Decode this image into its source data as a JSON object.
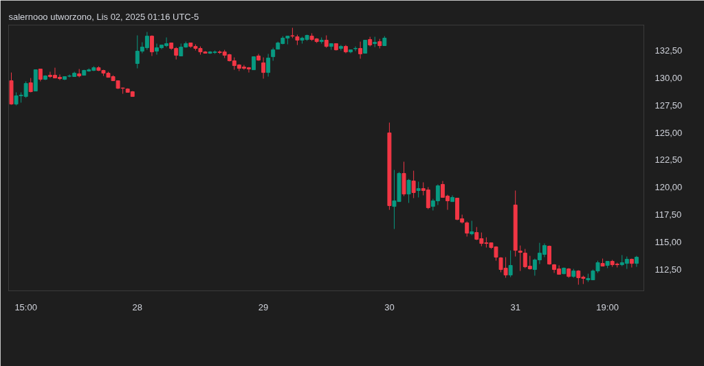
{
  "chart_data": {
    "type": "candlestick",
    "title": "salernooo utworzono, Lis 02, 2025 01:16 UTC-5",
    "categories": [
      null,
      null,
      null,
      "15:00",
      null,
      null,
      null,
      null,
      null,
      null,
      null,
      null,
      null,
      null,
      null,
      null,
      null,
      null,
      null,
      null,
      null,
      null,
      null,
      null,
      null,
      null,
      "28",
      null,
      null,
      null,
      null,
      null,
      null,
      null,
      null,
      null,
      null,
      null,
      null,
      null,
      null,
      null,
      null,
      null,
      null,
      null,
      null,
      null,
      null,
      null,
      null,
      null,
      "29",
      null,
      null,
      null,
      null,
      null,
      null,
      null,
      null,
      null,
      null,
      null,
      null,
      null,
      null,
      null,
      null,
      null,
      null,
      null,
      null,
      null,
      null,
      null,
      null,
      null,
      "30",
      null,
      null,
      null,
      null,
      null,
      null,
      null,
      null,
      null,
      null,
      null,
      null,
      null,
      null,
      null,
      null,
      null,
      null,
      null,
      null,
      null,
      null,
      null,
      null,
      null,
      "31",
      null,
      null,
      null,
      null,
      null,
      null,
      null,
      null,
      null,
      null,
      null,
      null,
      null,
      null,
      null,
      null,
      null,
      null,
      "19:00",
      null,
      null,
      null,
      null,
      null,
      null
    ],
    "ohlc": [
      [
        129.73,
        130.48,
        127.54,
        127.6
      ],
      [
        127.6,
        128.67,
        127.48,
        128.35
      ],
      [
        128.35,
        128.67,
        127.73,
        128.42
      ],
      [
        128.29,
        129.67,
        128.17,
        129.48
      ],
      [
        129.54,
        129.98,
        128.67,
        128.73
      ],
      [
        128.79,
        130.73,
        128.79,
        130.73
      ],
      [
        130.8,
        130.8,
        129.67,
        129.86
      ],
      [
        129.86,
        130.23,
        129.79,
        130.17
      ],
      [
        130.23,
        130.55,
        129.98,
        130.11
      ],
      [
        130.23,
        130.92,
        129.98,
        129.98
      ],
      [
        130.04,
        130.3,
        129.79,
        129.92
      ],
      [
        129.86,
        130.11,
        129.79,
        130.11
      ],
      [
        130.14,
        130.3,
        130.04,
        130.17
      ],
      [
        130.11,
        130.55,
        130.11,
        130.42
      ],
      [
        130.36,
        130.8,
        130.04,
        130.17
      ],
      [
        130.23,
        130.73,
        130.23,
        130.67
      ],
      [
        130.61,
        130.86,
        130.55,
        130.73
      ],
      [
        130.67,
        131.05,
        130.61,
        130.92
      ],
      [
        130.92,
        131.05,
        130.61,
        130.67
      ],
      [
        130.67,
        130.73,
        130.17,
        130.42
      ],
      [
        130.42,
        130.55,
        130.04,
        130.04
      ],
      [
        130.11,
        130.23,
        129.73,
        129.73
      ],
      [
        129.73,
        129.73,
        128.98,
        129.04
      ],
      [
        129.07,
        129.1,
        128.54,
        129.04
      ],
      [
        128.98,
        129.04,
        128.67,
        128.67
      ],
      [
        128.73,
        128.79,
        128.29,
        128.29
      ],
      [
        131.3,
        133.87,
        130.86,
        132.43
      ],
      [
        132.43,
        133.24,
        132.24,
        132.8
      ],
      [
        132.74,
        134.18,
        132.55,
        133.8
      ],
      [
        133.8,
        133.87,
        131.99,
        132.36
      ],
      [
        132.43,
        133.12,
        132.11,
        132.74
      ],
      [
        132.74,
        132.99,
        132.61,
        132.99
      ],
      [
        132.93,
        133.68,
        132.8,
        133.12
      ],
      [
        133.18,
        133.18,
        132.55,
        132.68
      ],
      [
        132.68,
        132.8,
        131.67,
        132.05
      ],
      [
        131.99,
        133.12,
        131.99,
        132.8
      ],
      [
        132.8,
        133.3,
        132.74,
        133.12
      ],
      [
        133.18,
        133.18,
        132.74,
        132.86
      ],
      [
        132.86,
        133.05,
        132.49,
        132.68
      ],
      [
        132.68,
        132.86,
        132.11,
        132.36
      ],
      [
        132.36,
        132.43,
        132.24,
        132.24
      ],
      [
        132.24,
        132.43,
        132.18,
        132.36
      ],
      [
        132.3,
        132.49,
        132.18,
        132.36
      ],
      [
        132.36,
        132.49,
        132.18,
        132.3
      ],
      [
        132.36,
        132.55,
        131.8,
        132.05
      ],
      [
        132.11,
        132.18,
        131.49,
        131.55
      ],
      [
        131.55,
        131.86,
        130.73,
        131.11
      ],
      [
        131.17,
        131.24,
        130.61,
        130.86
      ],
      [
        130.98,
        131.17,
        130.73,
        130.86
      ],
      [
        130.92,
        130.98,
        130.48,
        130.8
      ],
      [
        130.73,
        131.92,
        130.73,
        131.92
      ],
      [
        131.99,
        132.18,
        131.55,
        131.61
      ],
      [
        131.36,
        131.86,
        129.92,
        130.48
      ],
      [
        130.48,
        132.18,
        130.11,
        131.8
      ],
      [
        131.92,
        132.74,
        131.55,
        132.55
      ],
      [
        132.61,
        133.3,
        132.61,
        133.18
      ],
      [
        133.12,
        133.8,
        133.05,
        133.62
      ],
      [
        133.62,
        133.8,
        133.05,
        133.8
      ],
      [
        133.84,
        134.56,
        133.62,
        133.8
      ],
      [
        133.74,
        133.93,
        132.99,
        133.43
      ],
      [
        133.43,
        133.74,
        133.12,
        133.62
      ],
      [
        133.49,
        133.93,
        133.37,
        133.87
      ],
      [
        133.8,
        134.06,
        133.37,
        133.49
      ],
      [
        133.55,
        133.62,
        133.18,
        133.3
      ],
      [
        133.3,
        133.68,
        133.12,
        133.43
      ],
      [
        133.43,
        133.87,
        132.74,
        132.86
      ],
      [
        132.86,
        133.12,
        132.55,
        133.12
      ],
      [
        133.12,
        133.12,
        132.49,
        132.55
      ],
      [
        132.68,
        132.99,
        132.49,
        132.86
      ],
      [
        132.86,
        132.99,
        132.24,
        132.36
      ],
      [
        132.36,
        132.55,
        132.24,
        132.55
      ],
      [
        132.65,
        132.86,
        132.43,
        132.68
      ],
      [
        132.68,
        133.3,
        131.74,
        132.18
      ],
      [
        132.24,
        133.43,
        132.24,
        133.43
      ],
      [
        133.49,
        133.74,
        132.86,
        132.99
      ],
      [
        133.12,
        133.74,
        132.8,
        133.24
      ],
      [
        133.3,
        133.55,
        132.68,
        132.93
      ],
      [
        132.93,
        133.8,
        132.93,
        133.62
      ],
      [
        124.97,
        125.91,
        117.95,
        118.33
      ],
      [
        118.26,
        121.59,
        116.2,
        118.77
      ],
      [
        118.7,
        121.4,
        118.7,
        121.27
      ],
      [
        121.27,
        122.34,
        119.2,
        119.39
      ],
      [
        119.39,
        120.77,
        118.58,
        120.65
      ],
      [
        120.58,
        121.52,
        119.02,
        119.52
      ],
      [
        119.71,
        120.52,
        119.08,
        119.89
      ],
      [
        119.89,
        120.46,
        119.27,
        119.71
      ],
      [
        119.77,
        120.02,
        118.01,
        118.14
      ],
      [
        118.26,
        118.95,
        117.89,
        118.77
      ],
      [
        118.77,
        120.27,
        118.39,
        120.14
      ],
      [
        120.27,
        120.58,
        119.08,
        119.08
      ],
      [
        119.2,
        119.33,
        117.95,
        118.77
      ],
      [
        118.7,
        119.27,
        118.7,
        119.08
      ],
      [
        119.02,
        119.02,
        117.01,
        117.07
      ],
      [
        117.14,
        117.51,
        116.7,
        116.82
      ],
      [
        116.76,
        116.89,
        115.51,
        115.82
      ],
      [
        115.76,
        116.95,
        115.63,
        115.95
      ],
      [
        115.88,
        116.38,
        115.19,
        115.26
      ],
      [
        115.32,
        115.88,
        114.63,
        114.88
      ],
      [
        114.94,
        115.44,
        114.51,
        114.88
      ],
      [
        114.94,
        114.94,
        114.38,
        114.51
      ],
      [
        114.57,
        114.63,
        113.31,
        113.63
      ],
      [
        113.57,
        113.63,
        112.25,
        112.5
      ],
      [
        112.63,
        113.63,
        111.75,
        112.0
      ],
      [
        112.0,
        114.25,
        111.81,
        112.88
      ],
      [
        118.39,
        119.71,
        113.69,
        114.25
      ],
      [
        114.19,
        114.69,
        112.37,
        114.07
      ],
      [
        114.0,
        114.38,
        112.63,
        112.75
      ],
      [
        112.81,
        113.75,
        112.5,
        112.56
      ],
      [
        112.5,
        113.5,
        111.94,
        113.38
      ],
      [
        113.38,
        114.94,
        113.0,
        114.0
      ],
      [
        113.88,
        114.88,
        113.63,
        114.69
      ],
      [
        114.63,
        114.69,
        112.94,
        113.0
      ],
      [
        112.94,
        113.0,
        112.19,
        112.5
      ],
      [
        112.56,
        112.88,
        112.06,
        112.06
      ],
      [
        112.12,
        112.69,
        112.06,
        112.63
      ],
      [
        112.56,
        112.63,
        111.75,
        111.87
      ],
      [
        111.87,
        112.56,
        111.75,
        112.37
      ],
      [
        112.37,
        112.44,
        111.12,
        111.75
      ],
      [
        111.81,
        111.94,
        111.18,
        111.69
      ],
      [
        111.56,
        112.12,
        111.37,
        111.69
      ],
      [
        111.56,
        112.5,
        111.56,
        112.37
      ],
      [
        112.37,
        113.31,
        112.19,
        113.13
      ],
      [
        113.06,
        113.5,
        112.81,
        112.81
      ],
      [
        112.88,
        113.25,
        112.63,
        113.25
      ],
      [
        113.25,
        113.38,
        112.75,
        112.94
      ],
      [
        113.0,
        113.13,
        112.69,
        112.94
      ],
      [
        112.94,
        113.82,
        112.81,
        113.13
      ],
      [
        113.06,
        113.69,
        112.56,
        113.44
      ],
      [
        113.44,
        113.5,
        112.69,
        113.06
      ],
      [
        113.06,
        113.75,
        112.75,
        113.63
      ]
    ],
    "colors": [
      "#f23645",
      "#089981",
      "#089981",
      "#089981",
      "#f23645",
      "#089981",
      "#f23645",
      "#089981",
      "#f23645",
      "#f23645",
      "#f23645",
      "#089981",
      "#089981",
      "#089981",
      "#f23645",
      "#089981",
      "#089981",
      "#089981",
      "#f23645",
      "#f23645",
      "#f23645",
      "#f23645",
      "#f23645",
      "#f23645",
      "#f23645",
      "#f23645",
      "#089981",
      "#089981",
      "#089981",
      "#f23645",
      "#089981",
      "#089981",
      "#089981",
      "#f23645",
      "#f23645",
      "#089981",
      "#089981",
      "#f23645",
      "#f23645",
      "#f23645",
      "#f23645",
      "#089981",
      "#089981",
      "#f23645",
      "#f23645",
      "#f23645",
      "#f23645",
      "#f23645",
      "#f23645",
      "#f23645",
      "#089981",
      "#f23645",
      "#f23645",
      "#089981",
      "#089981",
      "#089981",
      "#089981",
      "#089981",
      "#f23645",
      "#f23645",
      "#089981",
      "#089981",
      "#f23645",
      "#f23645",
      "#089981",
      "#f23645",
      "#089981",
      "#f23645",
      "#089981",
      "#f23645",
      "#089981",
      "#089981",
      "#f23645",
      "#089981",
      "#f23645",
      "#089981",
      "#f23645",
      "#089981",
      "#f23645",
      "#089981",
      "#089981",
      "#f23645",
      "#089981",
      "#f23645",
      "#089981",
      "#f23645",
      "#f23645",
      "#089981",
      "#089981",
      "#f23645",
      "#f23645",
      "#089981",
      "#f23645",
      "#f23645",
      "#f23645",
      "#089981",
      "#f23645",
      "#f23645",
      "#f23645",
      "#f23645",
      "#f23645",
      "#f23645",
      "#f23645",
      "#089981",
      "#f23645",
      "#f23645",
      "#f23645",
      "#f23645",
      "#089981",
      "#089981",
      "#089981",
      "#f23645",
      "#f23645",
      "#f23645",
      "#089981",
      "#f23645",
      "#089981",
      "#f23645",
      "#f23645",
      "#089981",
      "#089981",
      "#089981",
      "#f23645",
      "#089981",
      "#f23645",
      "#f23645",
      "#089981",
      "#089981",
      "#f23645",
      "#089981"
    ],
    "ylim": [
      110.56,
      134.81
    ],
    "yticks": [
      {
        "value": 112.5,
        "label": "112,50"
      },
      {
        "value": 115,
        "label": "115,00"
      },
      {
        "value": 117.5,
        "label": "117,50"
      },
      {
        "value": 120,
        "label": "120,00"
      },
      {
        "value": 122.5,
        "label": "122,50"
      },
      {
        "value": 125,
        "label": "125,00"
      },
      {
        "value": 127.5,
        "label": "127,50"
      },
      {
        "value": 130,
        "label": "130,00"
      },
      {
        "value": 132.5,
        "label": "132,50"
      }
    ]
  }
}
